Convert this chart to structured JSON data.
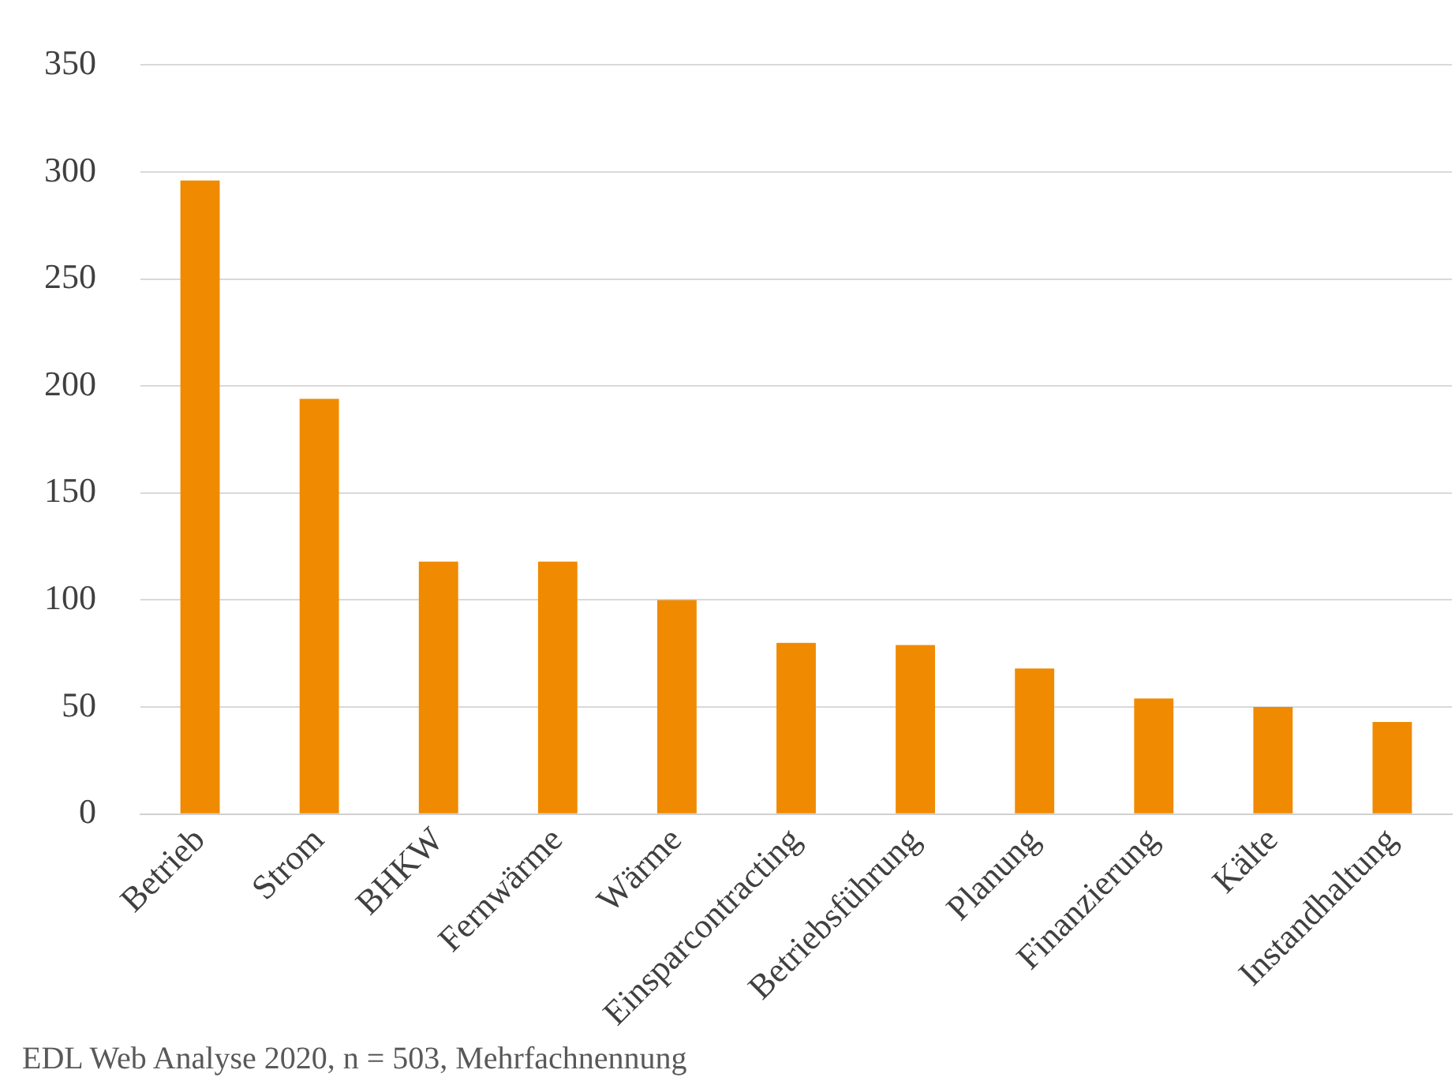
{
  "chart_data": {
    "type": "bar",
    "categories": [
      "Betrieb",
      "Strom",
      "BHKW",
      "Fernwärme",
      "Wärme",
      "Einsparcontracting",
      "Betriebsführung",
      "Planung",
      "Finanzierung",
      "Kälte",
      "Instandhaltung"
    ],
    "values": [
      296,
      194,
      118,
      118,
      100,
      80,
      79,
      68,
      54,
      50,
      43
    ],
    "color": "#f08a00",
    "ylim": [
      0,
      350
    ],
    "yticks": [
      0,
      50,
      100,
      150,
      200,
      250,
      300,
      350
    ],
    "grid": "y",
    "legend": false,
    "annotations": [
      "EDL Web Analyse 2020, n = 503, Mehrfachnennung"
    ]
  }
}
